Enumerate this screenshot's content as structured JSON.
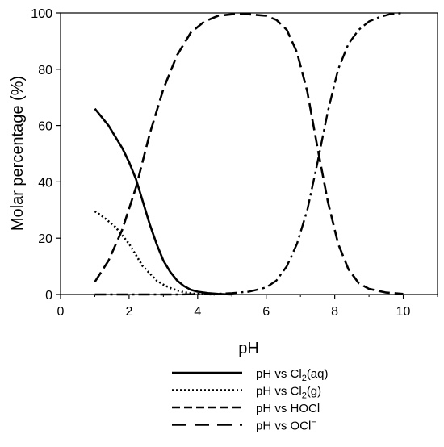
{
  "chart_data": {
    "type": "line",
    "xlabel": "pH",
    "ylabel": "Molar percentage (%)",
    "xlim": [
      0,
      11
    ],
    "ylim": [
      0,
      100
    ],
    "xticks": [
      "0",
      "2",
      "4",
      "6",
      "8",
      "10"
    ],
    "yticks": [
      "0",
      "20",
      "40",
      "60",
      "80",
      "100"
    ],
    "grid": false,
    "legend": "bottom",
    "series": [
      {
        "name": "pH vs Cl2(aq)",
        "legend_main": "pH vs Cl",
        "legend_sub": "2",
        "legend_tail": "(aq)",
        "style": "solid",
        "points": [
          [
            1.0,
            66
          ],
          [
            1.2,
            63
          ],
          [
            1.4,
            60
          ],
          [
            1.6,
            56
          ],
          [
            1.8,
            52
          ],
          [
            2.0,
            47
          ],
          [
            2.2,
            41
          ],
          [
            2.4,
            33
          ],
          [
            2.6,
            25
          ],
          [
            2.8,
            18
          ],
          [
            3.0,
            12
          ],
          [
            3.2,
            8
          ],
          [
            3.4,
            5
          ],
          [
            3.6,
            3
          ],
          [
            3.8,
            1.7
          ],
          [
            4.0,
            1
          ],
          [
            4.3,
            0.5
          ],
          [
            4.6,
            0.2
          ],
          [
            5.0,
            0
          ]
        ]
      },
      {
        "name": "pH vs Cl2(g)",
        "legend_main": "pH vs Cl",
        "legend_sub": "2",
        "legend_tail": "(g)",
        "style": "dotted",
        "points": [
          [
            1.0,
            29.5
          ],
          [
            1.2,
            28
          ],
          [
            1.4,
            26
          ],
          [
            1.6,
            24
          ],
          [
            1.8,
            21
          ],
          [
            2.0,
            18
          ],
          [
            2.2,
            14
          ],
          [
            2.4,
            10
          ],
          [
            2.6,
            7.5
          ],
          [
            2.8,
            5
          ],
          [
            3.0,
            3.5
          ],
          [
            3.2,
            2.3
          ],
          [
            3.4,
            1.5
          ],
          [
            3.6,
            0.8
          ],
          [
            3.8,
            0.4
          ],
          [
            4.0,
            0.2
          ],
          [
            4.5,
            0
          ]
        ]
      },
      {
        "name": "pH vs HOCl",
        "legend_main": "pH vs HOCl",
        "style": "dashed",
        "points": [
          [
            1.0,
            4.5
          ],
          [
            1.4,
            12
          ],
          [
            1.8,
            23
          ],
          [
            2.2,
            38
          ],
          [
            2.6,
            57
          ],
          [
            3.0,
            73
          ],
          [
            3.4,
            85
          ],
          [
            3.8,
            93
          ],
          [
            4.2,
            97
          ],
          [
            4.6,
            99
          ],
          [
            5.0,
            99.5
          ],
          [
            5.5,
            99.5
          ],
          [
            6.0,
            99
          ],
          [
            6.3,
            97.5
          ],
          [
            6.6,
            94
          ],
          [
            6.9,
            86
          ],
          [
            7.2,
            72
          ],
          [
            7.5,
            52
          ],
          [
            7.8,
            33
          ],
          [
            8.1,
            18
          ],
          [
            8.4,
            9
          ],
          [
            8.7,
            4
          ],
          [
            9.0,
            2
          ],
          [
            9.5,
            0.7
          ],
          [
            10.0,
            0.2
          ]
        ]
      },
      {
        "name": "pH vs OCl−",
        "legend_main": "pH vs OCl",
        "legend_sup": "−",
        "style": "dash-dot",
        "points": [
          [
            1.0,
            0
          ],
          [
            3.5,
            0
          ],
          [
            4.5,
            0.2
          ],
          [
            5.0,
            0.5
          ],
          [
            5.5,
            1
          ],
          [
            6.0,
            2.5
          ],
          [
            6.3,
            5
          ],
          [
            6.6,
            10
          ],
          [
            6.9,
            18
          ],
          [
            7.2,
            30
          ],
          [
            7.5,
            47
          ],
          [
            7.8,
            65
          ],
          [
            8.1,
            80
          ],
          [
            8.4,
            89
          ],
          [
            8.7,
            94
          ],
          [
            9.0,
            97
          ],
          [
            9.3,
            98.5
          ],
          [
            9.6,
            99.5
          ],
          [
            10.0,
            100
          ]
        ]
      }
    ]
  }
}
